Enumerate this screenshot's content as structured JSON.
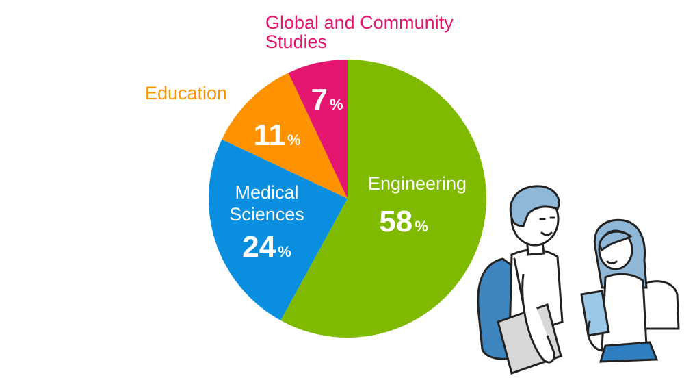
{
  "chart_data": {
    "type": "pie",
    "start": "top",
    "direction": "clockwise",
    "categories": [
      "Engineering",
      "Medical Sciences",
      "Education",
      "Global and Community Studies"
    ],
    "values": [
      58,
      24,
      11,
      7
    ],
    "unit": "%",
    "colors": [
      "#7fba00",
      "#0a8fe0",
      "#ff9200",
      "#e4166f"
    ],
    "labels": [
      {
        "name_lines": [
          "Engineering"
        ],
        "value": "58",
        "unit": "%",
        "name_color": "#ffffff",
        "value_color": "#ffffff"
      },
      {
        "name_lines": [
          "Medical",
          "Sciences"
        ],
        "value": "24",
        "unit": "%",
        "name_color": "#ffffff",
        "value_color": "#ffffff"
      },
      {
        "name_lines": [
          "Education"
        ],
        "value": "11",
        "unit": "%",
        "name_color": "#ff9200",
        "value_color": "#ffffff"
      },
      {
        "name_lines": [
          "Global and Community",
          "Studies"
        ],
        "value": "7",
        "unit": "%",
        "name_color": "#e4166f",
        "value_color": "#ffffff"
      }
    ]
  },
  "illustration": {
    "description_icon": "two-students-icon",
    "colors": {
      "hair": "#8fb8d8",
      "backpack": "#3f86c0",
      "laptop": "#d8d8d8",
      "book": "#9cc8e8",
      "skirt": "#2f7fc0"
    }
  }
}
